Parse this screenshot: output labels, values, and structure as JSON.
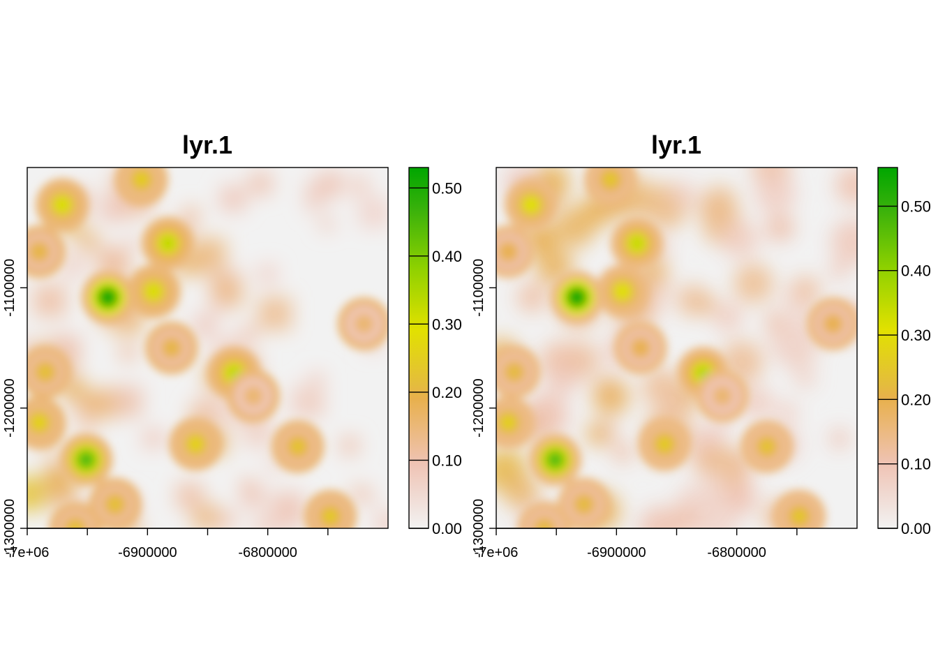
{
  "chart_data": [
    {
      "type": "heatmap",
      "title": "lyr.1",
      "xlim": [
        -7000000,
        -6700000
      ],
      "ylim": [
        -1300000,
        -1000000
      ],
      "x_ticks": [
        -7000000,
        -6950000,
        -6900000,
        -6850000,
        -6800000,
        -6750000
      ],
      "x_tick_labels": [
        "-7e+06",
        "",
        "-6900000",
        "",
        "-6800000",
        ""
      ],
      "y_ticks": [
        -1300000,
        -1200000,
        -1100000
      ],
      "y_tick_labels": [
        "-1300000",
        "-1200000",
        "-1100000"
      ],
      "legend": {
        "min": 0.0,
        "max": 0.53,
        "ticks": [
          0.0,
          0.1,
          0.2,
          0.3,
          0.4,
          0.5
        ],
        "tick_labels": [
          "0.00",
          "0.10",
          "0.20",
          "0.30",
          "0.40",
          "0.50"
        ],
        "placement": "right"
      },
      "hotspots": [
        {
          "x": -6933000,
          "y": -1108000,
          "value": 0.53
        },
        {
          "x": -6951000,
          "y": -1243000,
          "value": 0.45
        },
        {
          "x": -6828000,
          "y": -1171000,
          "value": 0.33
        },
        {
          "x": -6883000,
          "y": -1063000,
          "value": 0.33
        },
        {
          "x": -6971000,
          "y": -1031000,
          "value": 0.3
        },
        {
          "x": -6895000,
          "y": -1103000,
          "value": 0.3
        },
        {
          "x": -6905000,
          "y": -1010000,
          "value": 0.25
        },
        {
          "x": -6990000,
          "y": -1212000,
          "value": 0.26
        },
        {
          "x": -6775000,
          "y": -1232000,
          "value": 0.23
        },
        {
          "x": -6860000,
          "y": -1230000,
          "value": 0.26
        },
        {
          "x": -6748000,
          "y": -1290000,
          "value": 0.24
        },
        {
          "x": -6927000,
          "y": -1280000,
          "value": 0.22
        },
        {
          "x": -6985000,
          "y": -1170000,
          "value": 0.22
        },
        {
          "x": -6720000,
          "y": -1130000,
          "value": 0.16
        },
        {
          "x": -6990000,
          "y": -1070000,
          "value": 0.2
        },
        {
          "x": -6812000,
          "y": -1190000,
          "value": 0.16
        },
        {
          "x": -6880000,
          "y": -1150000,
          "value": 0.2
        },
        {
          "x": -6960000,
          "y": -1300000,
          "value": 0.22
        }
      ]
    },
    {
      "type": "heatmap",
      "title": "lyr.1",
      "xlim": [
        -7000000,
        -6700000
      ],
      "ylim": [
        -1300000,
        -1000000
      ],
      "x_ticks": [
        -7000000,
        -6950000,
        -6900000,
        -6850000,
        -6800000,
        -6750000
      ],
      "x_tick_labels": [
        "-7e+06",
        "",
        "-6900000",
        "",
        "-6800000",
        ""
      ],
      "y_ticks": [
        -1300000,
        -1200000,
        -1100000
      ],
      "y_tick_labels": [
        "-1300000",
        "-1200000",
        "-1100000"
      ],
      "legend": {
        "min": 0.0,
        "max": 0.56,
        "ticks": [
          0.0,
          0.1,
          0.2,
          0.3,
          0.4,
          0.5
        ],
        "tick_labels": [
          "0.00",
          "0.10",
          "0.20",
          "0.30",
          "0.40",
          "0.50"
        ],
        "placement": "right"
      },
      "hotspots": [
        {
          "x": -6933000,
          "y": -1108000,
          "value": 0.56
        },
        {
          "x": -6951000,
          "y": -1243000,
          "value": 0.47
        },
        {
          "x": -6828000,
          "y": -1171000,
          "value": 0.36
        },
        {
          "x": -6883000,
          "y": -1063000,
          "value": 0.34
        },
        {
          "x": -6971000,
          "y": -1031000,
          "value": 0.31
        },
        {
          "x": -6895000,
          "y": -1103000,
          "value": 0.31
        },
        {
          "x": -6905000,
          "y": -1010000,
          "value": 0.25
        },
        {
          "x": -6990000,
          "y": -1212000,
          "value": 0.27
        },
        {
          "x": -6775000,
          "y": -1232000,
          "value": 0.24
        },
        {
          "x": -6860000,
          "y": -1230000,
          "value": 0.26
        },
        {
          "x": -6748000,
          "y": -1290000,
          "value": 0.25
        },
        {
          "x": -6927000,
          "y": -1280000,
          "value": 0.22
        },
        {
          "x": -6985000,
          "y": -1170000,
          "value": 0.22
        },
        {
          "x": -6720000,
          "y": -1130000,
          "value": 0.2
        },
        {
          "x": -6990000,
          "y": -1070000,
          "value": 0.2
        },
        {
          "x": -6812000,
          "y": -1190000,
          "value": 0.17
        },
        {
          "x": -6880000,
          "y": -1150000,
          "value": 0.2
        },
        {
          "x": -6960000,
          "y": -1300000,
          "value": 0.22
        }
      ]
    }
  ]
}
